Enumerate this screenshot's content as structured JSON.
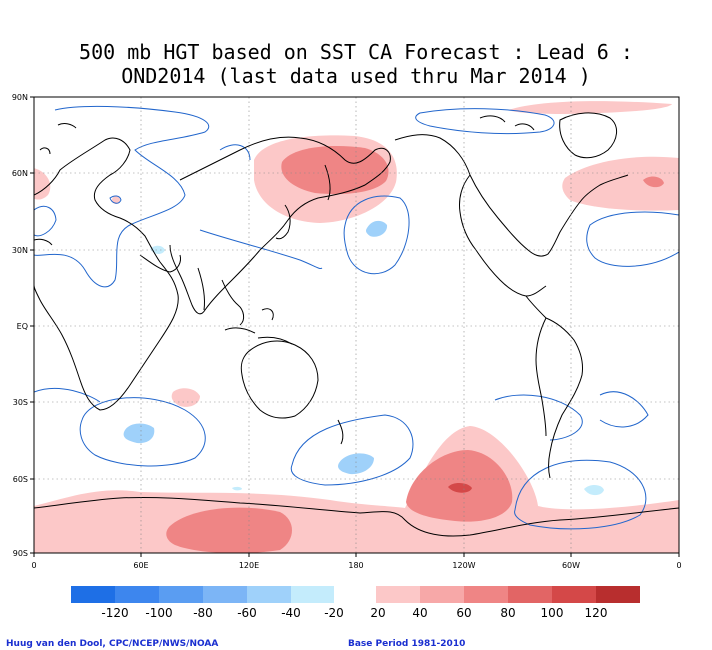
{
  "title_line1": "500 mb HGT based on SST CA Forecast : Lead 6 :",
  "title_line2": "OND2014 (last data used thru Mar 2014 )",
  "lat_labels": [
    "90N",
    "60N",
    "30N",
    "EQ",
    "30S",
    "60S",
    "90S"
  ],
  "lon_labels": [
    "0",
    "60E",
    "120E",
    "180",
    "120W",
    "60W",
    "0"
  ],
  "legend": {
    "negative": {
      "labels": [
        "-120",
        "-100",
        "-80",
        "-60",
        "-40",
        "-20"
      ],
      "colors": [
        "#1e6fe6",
        "#3d86ee",
        "#5a9df2",
        "#7cb5f6",
        "#9fd1fa",
        "#c4ecfc"
      ]
    },
    "positive": {
      "labels": [
        "20",
        "40",
        "60",
        "80",
        "100",
        "120"
      ],
      "colors": [
        "#fcc8c8",
        "#f7a8a8",
        "#ef8585",
        "#e26565",
        "#d44848",
        "#b82e2e"
      ]
    }
  },
  "credit_left": "Huug van den Dool, CPC/NCEP/NWS/NOAA",
  "credit_right": "Base Period 1981-2010"
}
